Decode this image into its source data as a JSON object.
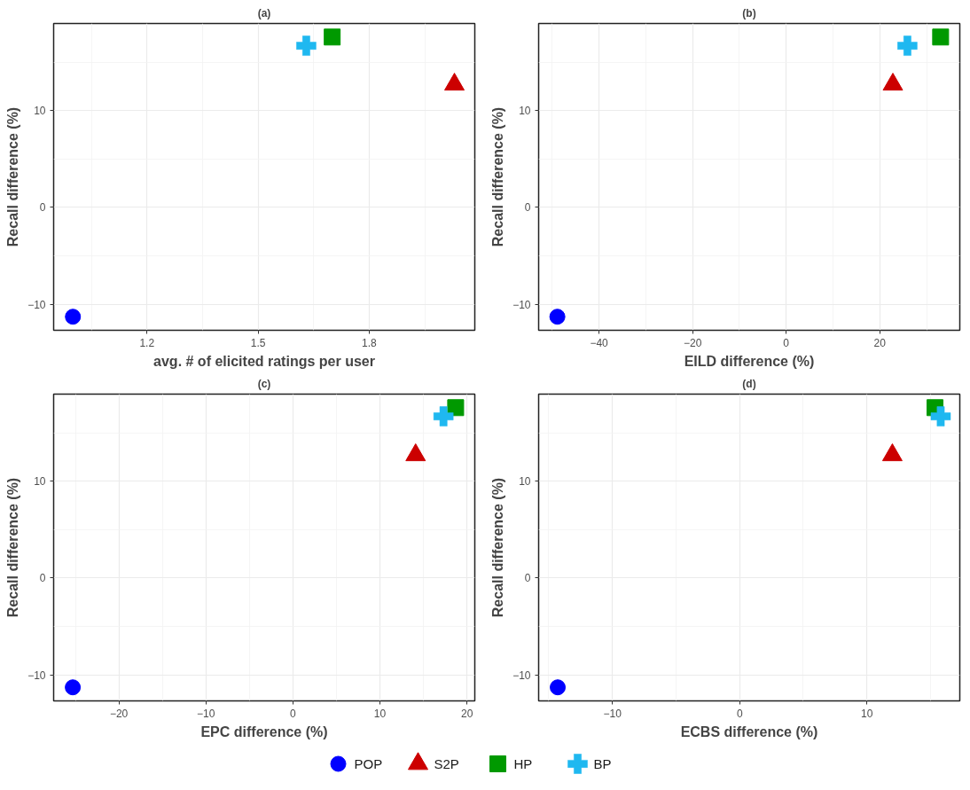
{
  "chart_data": [
    {
      "type": "scatter",
      "title": "(a)",
      "xlabel": "avg. # of elicited ratings per user",
      "ylabel": "Recall difference (%)",
      "xlim": [
        0.948,
        2.085
      ],
      "ylim": [
        -12.7,
        19.0
      ],
      "xticks": [
        1.2,
        1.5,
        1.8
      ],
      "yticks": [
        -10,
        0,
        10
      ],
      "grid": true,
      "legend": "bottom",
      "series": [
        {
          "name": "POP",
          "color": "#0000ff",
          "marker": "circle",
          "x": [
            1.0
          ],
          "values": [
            -11.3
          ]
        },
        {
          "name": "S2P",
          "color": "#cc0000",
          "marker": "triangle",
          "x": [
            2.03
          ],
          "values": [
            12.7
          ]
        },
        {
          "name": "HP",
          "color": "#009900",
          "marker": "square",
          "x": [
            1.7
          ],
          "values": [
            17.6
          ]
        },
        {
          "name": "BP",
          "color": "#1fb8f0",
          "marker": "cross",
          "x": [
            1.63
          ],
          "values": [
            16.7
          ]
        }
      ]
    },
    {
      "type": "scatter",
      "title": "(b)",
      "xlabel": "EILD difference (%)",
      "ylabel": "Recall difference (%)",
      "xlim": [
        -52.9,
        37.1
      ],
      "ylim": [
        -12.7,
        19.0
      ],
      "xticks": [
        -40,
        -20,
        0,
        20
      ],
      "yticks": [
        -10,
        0,
        10
      ],
      "grid": true,
      "series": [
        {
          "name": "POP",
          "color": "#0000ff",
          "marker": "circle",
          "x": [
            -48.9
          ],
          "values": [
            -11.3
          ]
        },
        {
          "name": "S2P",
          "color": "#cc0000",
          "marker": "triangle",
          "x": [
            22.8
          ],
          "values": [
            12.7
          ]
        },
        {
          "name": "HP",
          "color": "#009900",
          "marker": "square",
          "x": [
            33.0
          ],
          "values": [
            17.6
          ]
        },
        {
          "name": "BP",
          "color": "#1fb8f0",
          "marker": "cross",
          "x": [
            25.9
          ],
          "values": [
            16.7
          ]
        }
      ]
    },
    {
      "type": "scatter",
      "title": "(c)",
      "xlabel": "EPC difference (%)",
      "ylabel": "Recall difference (%)",
      "xlim": [
        -27.5,
        20.9
      ],
      "ylim": [
        -12.7,
        19.0
      ],
      "xticks": [
        -20,
        -10,
        0,
        10,
        20
      ],
      "yticks": [
        -10,
        0,
        10
      ],
      "grid": true,
      "series": [
        {
          "name": "POP",
          "color": "#0000ff",
          "marker": "circle",
          "x": [
            -25.3
          ],
          "values": [
            -11.3
          ]
        },
        {
          "name": "S2P",
          "color": "#cc0000",
          "marker": "triangle",
          "x": [
            14.1
          ],
          "values": [
            12.7
          ]
        },
        {
          "name": "HP",
          "color": "#009900",
          "marker": "square",
          "x": [
            18.7
          ],
          "values": [
            17.6
          ]
        },
        {
          "name": "BP",
          "color": "#1fb8f0",
          "marker": "cross",
          "x": [
            17.3
          ],
          "values": [
            16.7
          ]
        }
      ]
    },
    {
      "type": "scatter",
      "title": "(d)",
      "xlabel": "ECBS difference (%)",
      "ylabel": "Recall difference (%)",
      "xlim": [
        -15.8,
        17.3
      ],
      "ylim": [
        -12.7,
        19.0
      ],
      "xticks": [
        -10,
        0,
        10
      ],
      "yticks": [
        -10,
        0,
        10
      ],
      "grid": true,
      "series": [
        {
          "name": "POP",
          "color": "#0000ff",
          "marker": "circle",
          "x": [
            -14.3
          ],
          "values": [
            -11.3
          ]
        },
        {
          "name": "S2P",
          "color": "#cc0000",
          "marker": "triangle",
          "x": [
            12.0
          ],
          "values": [
            12.7
          ]
        },
        {
          "name": "HP",
          "color": "#009900",
          "marker": "square",
          "x": [
            15.35
          ],
          "values": [
            17.6
          ]
        },
        {
          "name": "BP",
          "color": "#1fb8f0",
          "marker": "cross",
          "x": [
            15.8
          ],
          "values": [
            16.7
          ]
        }
      ]
    }
  ]
}
